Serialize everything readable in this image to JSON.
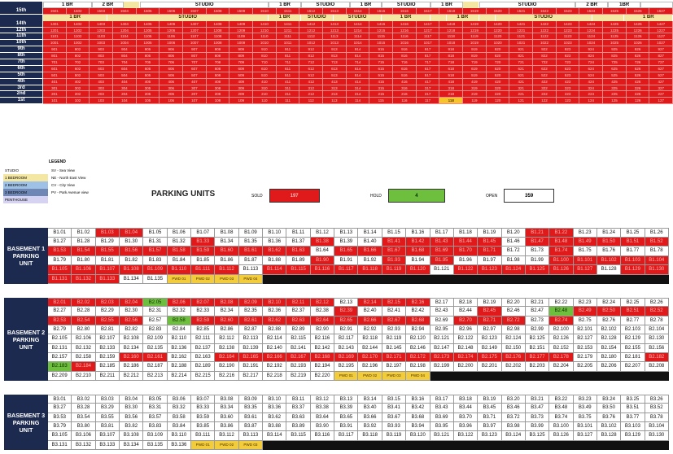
{
  "floor_plan": {
    "top_band": [
      {
        "label": "1 BR",
        "cls": "w",
        "span": 3
      },
      {
        "label": "2 BR",
        "cls": "w",
        "span": 2
      },
      {
        "label": "",
        "cls": "y",
        "span": 1
      },
      {
        "label": "STUDIO",
        "cls": "w",
        "span": 8
      },
      {
        "label": "1 BR",
        "cls": "w",
        "span": 2
      },
      {
        "label": "STUDIO",
        "cls": "w",
        "span": 3
      },
      {
        "label": "1 BR",
        "cls": "w",
        "span": 2
      },
      {
        "label": "STUDIO",
        "cls": "w",
        "span": 3
      },
      {
        "label": "1 BR",
        "cls": "w",
        "span": 2
      },
      {
        "label": "",
        "cls": "y",
        "span": 1
      },
      {
        "label": "STUDIO",
        "cls": "w",
        "span": 6
      },
      {
        "label": "2 BR",
        "cls": "w",
        "span": 2
      },
      {
        "label": "1BR",
        "cls": "w",
        "span": 2
      },
      {
        "label": "",
        "cls": "w",
        "span": 2
      }
    ],
    "mid_band": [
      {
        "label": "1 BR",
        "cls": "y",
        "span": 4
      },
      {
        "label": "STUDIO",
        "cls": "y",
        "span": 10
      },
      {
        "label": "1 BR",
        "cls": "y",
        "span": 2
      },
      {
        "label": "STUDIO",
        "cls": "y",
        "span": 2
      },
      {
        "label": "STUDIO",
        "cls": "y",
        "span": 3
      },
      {
        "label": "1 BR",
        "cls": "y",
        "span": 3
      },
      {
        "label": "",
        "cls": "y",
        "span": 1
      },
      {
        "label": "1 BR",
        "cls": "y",
        "span": 2
      },
      {
        "label": "",
        "cls": "y",
        "span": 1
      },
      {
        "label": "STUDIO",
        "cls": "y",
        "span": 6
      },
      {
        "label": "",
        "cls": "y",
        "span": 2
      },
      {
        "label": "1 BR",
        "cls": "y",
        "span": 3
      }
    ],
    "floor_15_label": "15th",
    "floor_15": [
      "1501",
      "1502",
      "1503",
      "1504",
      "1505",
      "1506",
      "1507",
      "1508",
      "1509",
      "1510",
      "1511",
      "1512",
      "1513",
      "1514",
      "1515",
      "1516",
      "1517",
      "1518",
      "1519",
      "1520",
      "1521",
      "1522",
      "1523",
      "1524",
      "1525",
      "1526",
      "1527"
    ],
    "floors": [
      {
        "label": "14th",
        "prefix": "14"
      },
      {
        "label": "12th",
        "prefix": "12"
      },
      {
        "label": "11th",
        "prefix": "11"
      },
      {
        "label": "10th",
        "prefix": "10"
      },
      {
        "label": "9th",
        "prefix": "9"
      },
      {
        "label": "8th",
        "prefix": "8"
      },
      {
        "label": "7th",
        "prefix": "7"
      },
      {
        "label": "6th",
        "prefix": "6"
      },
      {
        "label": "5th",
        "prefix": "5"
      },
      {
        "label": "4th",
        "prefix": "4"
      },
      {
        "label": "3rd",
        "prefix": "3"
      },
      {
        "label": "2nd",
        "prefix": "2"
      },
      {
        "label": "1st",
        "prefix": "1"
      }
    ],
    "highlight_unit": "118",
    "colors": {
      "sold": "#e01a1a",
      "hold": "#6fbf3e",
      "navy": "#1b2a4e",
      "pwd": "#f3cc3b"
    }
  },
  "legend": {
    "title": "LEGEND",
    "items": [
      {
        "swatch": "STUDIO",
        "bg": "#ffffff",
        "desc": "SV - Sea View"
      },
      {
        "swatch": "1 BEDROOM",
        "bg": "#f3e7a3",
        "desc": "NE - North East View"
      },
      {
        "swatch": "2 BEDROOM",
        "bg": "#9fc1e6",
        "desc": "CV - City View"
      },
      {
        "swatch": "3 BEDROOM",
        "bg": "#6f87b5",
        "desc": "PV - Park Avenue view"
      },
      {
        "swatch": "PENTHOUSE",
        "bg": "#d6d3f2",
        "desc": ""
      }
    ]
  },
  "parking": {
    "title": "PARKING UNITS",
    "sold_label": "SOLD",
    "sold_value": "197",
    "hold_label": "HOLD",
    "hold_value": "4",
    "open_label": "OPEN",
    "open_value": "359",
    "basement1_label": "BASEMENT 1 PARKING UNIT",
    "basement1": [
      [
        "B1.01",
        "B1.02",
        "B1.03",
        "B1.04",
        "B1.05",
        "B1.06",
        "B1.07",
        "B1.08",
        "B1.09",
        "B1.10",
        "B1.11",
        "B1.12",
        "B1.13",
        "B1.14",
        "B1.15",
        "B1.16",
        "B1.17",
        "B1.18",
        "B1.19",
        "B1.20",
        "B1.21",
        "B1.22",
        "B1.23",
        "B1.24",
        "B1.25",
        "B1.26"
      ],
      [
        "B1.27",
        "B1.28",
        "B1.29",
        "B1.30",
        "B1.31",
        "B1.32",
        "B1.33",
        "B1.34",
        "B1.35",
        "B1.36",
        "B1.37",
        "B1.38",
        "B1.39",
        "B1.40",
        "B1.41",
        "B1.42",
        "B1.43",
        "B1.44",
        "B1.45",
        "B1.46",
        "B1.47",
        "B1.48",
        "B1.49",
        "B1.50",
        "B1.51",
        "B1.52"
      ],
      [
        "B1.53",
        "B1.54",
        "B1.55",
        "B1.56",
        "B1.57",
        "B1.58",
        "B1.59",
        "B1.60",
        "B1.61",
        "B1.62",
        "B1.63",
        "B1.64",
        "B1.65",
        "B1.66",
        "B1.67",
        "B1.68",
        "B1.69",
        "B1.70",
        "B1.71",
        "B1.72",
        "B1.73",
        "B1.74",
        "B1.75",
        "B1.76",
        "B1.77",
        "B1.78"
      ],
      [
        "B1.79",
        "B1.80",
        "B1.81",
        "B1.82",
        "B1.83",
        "B1.84",
        "B1.85",
        "B1.86",
        "B1.87",
        "B1.88",
        "B1.89",
        "B1.90",
        "B1.91",
        "B1.92",
        "B1.93",
        "B1.94",
        "B1.95",
        "B1.96",
        "B1.97",
        "B1.98",
        "B1.99",
        "B1.100",
        "B1.101",
        "B1.102",
        "B1.103",
        "B1.104"
      ],
      [
        "B1.105",
        "B1.106",
        "B1.107",
        "B1.108",
        "B1.109",
        "B1.110",
        "B1.111",
        "B1.112",
        "B1.113",
        "B1.114",
        "B1.115",
        "B1.116",
        "B1.117",
        "B1.118",
        "B1.119",
        "B1.120",
        "B1.121",
        "B1.122",
        "B1.123",
        "B1.124",
        "B1.125",
        "B1.126",
        "B1.127",
        "B1.128",
        "B1.129",
        "B1.130"
      ],
      [
        "B1.131",
        "B1.132",
        "B1.133",
        "B1.134",
        "B1.135",
        "PWD 01",
        "PWD 02",
        "PWD 03",
        "PWD 04",
        "",
        "",
        "",
        "",
        "",
        "",
        "",
        "",
        "",
        "",
        "",
        "",
        "",
        "",
        "",
        "",
        ""
      ]
    ],
    "basement1_status": [
      "..SS.............SS...........SSSSS..S..........SS..........SSSSSSS...........SSSS......SSSSSS.......S....S........SS.SSSSSS.S....S.SSSSSSS.SSSSSSSSSSSSSSSS.SSSSS.SSSSSSSSSSS.S..SSSS"
    ],
    "basement2_label": "BASEMENT 2 PARKING UNIT",
    "basement2": [
      [
        "B2.01",
        "B2.02",
        "B2.03",
        "B2.04",
        "B2.05",
        "B2.06",
        "B2.07",
        "B2.08",
        "B2.09",
        "B2.10",
        "B2.11",
        "B2.12",
        "B2.13",
        "B2.14",
        "B2.15",
        "B2.16",
        "B2.17",
        "B2.18",
        "B2.19",
        "B2.20",
        "B2.21",
        "B2.22",
        "B2.23",
        "B2.24",
        "B2.25",
        "B2.26"
      ],
      [
        "B2.27",
        "B2.28",
        "B2.29",
        "B2.30",
        "B2.31",
        "B2.32",
        "B2.33",
        "B2.34",
        "B2.35",
        "B2.36",
        "B2.37",
        "B2.38",
        "B2.39",
        "B2.40",
        "B2.41",
        "B2.42",
        "B2.43",
        "B2.44",
        "B2.45",
        "B2.46",
        "B2.47",
        "B2.48",
        "B2.49",
        "B2.50",
        "B2.51",
        "B2.52"
      ],
      [
        "B2.53",
        "B2.54",
        "B2.55",
        "B2.56",
        "B2.57",
        "B2.58",
        "B2.59",
        "B2.60",
        "B2.61",
        "B2.62",
        "B2.63",
        "B2.64",
        "B2.65",
        "B2.66",
        "B2.67",
        "B2.68",
        "B2.69",
        "B2.70",
        "B2.71",
        "B2.72",
        "B2.73",
        "B2.74",
        "B2.75",
        "B2.76",
        "B2.77",
        "B2.78"
      ],
      [
        "B2.79",
        "B2.80",
        "B2.81",
        "B2.82",
        "B2.83",
        "B2.84",
        "B2.85",
        "B2.86",
        "B2.87",
        "B2.88",
        "B2.89",
        "B2.90",
        "B2.91",
        "B2.92",
        "B2.93",
        "B2.94",
        "B2.95",
        "B2.96",
        "B2.97",
        "B2.98",
        "B2.99",
        "B2.100",
        "B2.101",
        "B2.102",
        "B2.103",
        "B2.104"
      ],
      [
        "B2.105",
        "B2.106",
        "B2.107",
        "B2.108",
        "B2.109",
        "B2.110",
        "B2.111",
        "B2.112",
        "B2.113",
        "B2.114",
        "B2.115",
        "B2.116",
        "B2.117",
        "B2.118",
        "B2.119",
        "B2.120",
        "B2.121",
        "B2.122",
        "B2.123",
        "B2.124",
        "B2.125",
        "B2.126",
        "B2.127",
        "B2.128",
        "B2.129",
        "B2.130"
      ],
      [
        "B2.131",
        "B2.132",
        "B2.133",
        "B2.134",
        "B2.135",
        "B2.136",
        "B2.137",
        "B2.138",
        "B2.139",
        "B2.140",
        "B2.141",
        "B2.142",
        "B2.143",
        "B2.144",
        "B2.145",
        "B2.146",
        "B2.147",
        "B2.148",
        "B2.149",
        "B2.150",
        "B2.151",
        "B2.152",
        "B2.153",
        "B2.154",
        "B2.155",
        "B2.156"
      ],
      [
        "B2.157",
        "B2.158",
        "B2.159",
        "B2.160",
        "B2.161",
        "B2.162",
        "B2.163",
        "B2.164",
        "B2.165",
        "B2.166",
        "B2.167",
        "B2.168",
        "B2.169",
        "B2.170",
        "B2.171",
        "B2.172",
        "B2.173",
        "B2.174",
        "B2.175",
        "B2.176",
        "B2.177",
        "B2.178",
        "B2.179",
        "B2.180",
        "B2.181",
        "B2.182"
      ],
      [
        "B2.183",
        "B2.184",
        "B2.185",
        "B2.186",
        "B2.187",
        "B2.188",
        "B2.189",
        "B2.190",
        "B2.191",
        "B2.192",
        "B2.193",
        "B2.194",
        "B2.195",
        "B2.196",
        "B2.197",
        "B2.198",
        "B2.199",
        "B2.200",
        "B2.201",
        "B2.202",
        "B2.203",
        "B2.204",
        "B2.205",
        "B2.206",
        "B2.207",
        "B2.208"
      ],
      [
        "B2.209",
        "B2.210",
        "B2.211",
        "B2.212",
        "B2.213",
        "B2.214",
        "B2.215",
        "B2.216",
        "B2.217",
        "B2.218",
        "B2.219",
        "B2.220",
        "PWD 01",
        "PWD 02",
        "PWD 03",
        "PWD 04",
        "",
        "",
        "",
        "",
        "",
        "",
        "",
        "",
        "",
        ""
      ]
    ],
    "basement3_label": "BASEMENT 3 PARKING UNIT",
    "basement3": [
      [
        "B3.01",
        "B3.02",
        "B3.03",
        "B3.04",
        "B3.05",
        "B3.06",
        "B3.07",
        "B3.08",
        "B3.09",
        "B3.10",
        "B3.11",
        "B3.12",
        "B3.13",
        "B3.14",
        "B3.15",
        "B3.16",
        "B3.17",
        "B3.18",
        "B3.19",
        "B3.20",
        "B3.21",
        "B3.22",
        "B3.23",
        "B3.24",
        "B3.25",
        "B3.26"
      ],
      [
        "B3.27",
        "B3.28",
        "B3.29",
        "B3.30",
        "B3.31",
        "B3.32",
        "B3.33",
        "B3.34",
        "B3.35",
        "B3.36",
        "B3.37",
        "B3.38",
        "B3.39",
        "B3.40",
        "B3.41",
        "B3.42",
        "B3.43",
        "B3.44",
        "B3.45",
        "B3.46",
        "B3.47",
        "B3.48",
        "B3.49",
        "B3.50",
        "B3.51",
        "B3.52"
      ],
      [
        "B3.53",
        "B3.54",
        "B3.55",
        "B3.56",
        "B3.57",
        "B3.58",
        "B3.59",
        "B3.60",
        "B3.61",
        "B3.62",
        "B3.63",
        "B3.64",
        "B3.65",
        "B3.66",
        "B3.67",
        "B3.68",
        "B3.69",
        "B3.70",
        "B3.71",
        "B3.72",
        "B3.73",
        "B3.74",
        "B3.75",
        "B3.76",
        "B3.77",
        "B3.78"
      ],
      [
        "B3.79",
        "B3.80",
        "B3.81",
        "B3.82",
        "B3.83",
        "B3.84",
        "B3.85",
        "B3.86",
        "B3.87",
        "B3.88",
        "B3.89",
        "B3.90",
        "B3.91",
        "B3.92",
        "B3.93",
        "B3.94",
        "B3.95",
        "B3.96",
        "B3.97",
        "B3.98",
        "B3.99",
        "B3.100",
        "B3.101",
        "B3.102",
        "B3.103",
        "B3.104"
      ],
      [
        "B3.105",
        "B3.106",
        "B3.107",
        "B3.108",
        "B3.109",
        "B3.110",
        "B3.111",
        "B3.112",
        "B3.113",
        "B3.114",
        "B3.115",
        "B3.116",
        "B3.117",
        "B3.118",
        "B3.119",
        "B3.120",
        "B3.121",
        "B3.122",
        "B3.123",
        "B3.124",
        "B3.125",
        "B3.126",
        "B3.127",
        "B3.128",
        "B3.129",
        "B3.130"
      ],
      [
        "B3.131",
        "B3.132",
        "B3.133",
        "B3.134",
        "B3.135",
        "B3.136",
        "PWD 01",
        "PWD 02",
        "PWD 03",
        "",
        "",
        "",
        "",
        "",
        "",
        "",
        "",
        "",
        "",
        "",
        "",
        "",
        "",
        "",
        "",
        ""
      ]
    ]
  }
}
